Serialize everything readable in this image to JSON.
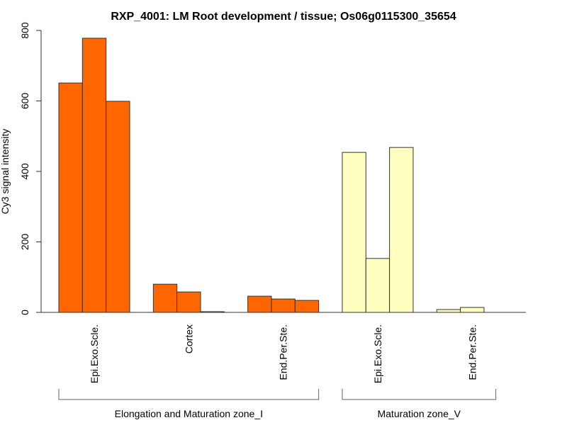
{
  "chart_data": {
    "type": "bar",
    "title": "RXP_4001: LM Root development / tissue; Os06g0115300_35654",
    "ylabel": "Cy3 signal intensity",
    "xlabel": "",
    "ylim": [
      0,
      800
    ],
    "yticks": [
      "0",
      "200",
      "400",
      "600",
      "800"
    ],
    "grid": false,
    "categories": [
      {
        "label": "Epi.Exo.Scle.",
        "group": 0,
        "values": [
          651,
          778,
          599
        ]
      },
      {
        "label": "Cortex",
        "group": 0,
        "values": [
          80,
          58,
          2
        ]
      },
      {
        "label": "End.Per.Ste.",
        "group": 0,
        "values": [
          46,
          38,
          34
        ]
      },
      {
        "label": "Epi.Exo.Scle.",
        "group": 1,
        "values": [
          454,
          153,
          468
        ]
      },
      {
        "label": "End.Per.Ste.",
        "group": 1,
        "values": [
          8,
          14
        ]
      }
    ],
    "groups": [
      {
        "label": "Elongation and Maturation zone_I",
        "color": "#ff6600"
      },
      {
        "label": "Maturation zone_V",
        "color": "#ffffc0"
      }
    ]
  }
}
